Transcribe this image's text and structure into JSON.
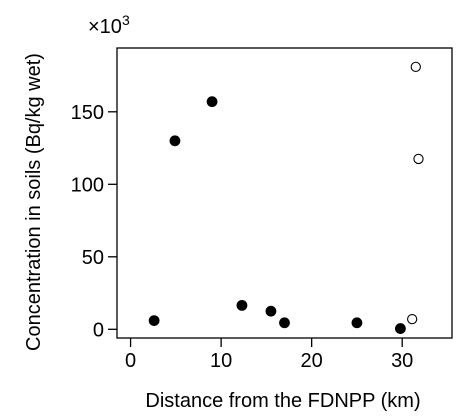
{
  "chart_data": {
    "type": "scatter",
    "xlabel": "Distance from the FDNPP (km)",
    "ylabel": "Concentration in soils (Bq/kg wet)",
    "y_scale_prefix": "×10",
    "y_scale_exponent": "3",
    "xlim": [
      -1.5,
      35.5
    ],
    "ylim": [
      -6,
      194
    ],
    "x_ticks": [
      0,
      10,
      20,
      30
    ],
    "y_ticks": [
      0,
      50,
      100,
      150
    ],
    "grid": false,
    "legend": "none",
    "series": [
      {
        "marker": "filled-circle",
        "color": "#000000",
        "points": [
          {
            "x": 2.6,
            "y": 6
          },
          {
            "x": 4.9,
            "y": 130
          },
          {
            "x": 9.0,
            "y": 157
          },
          {
            "x": 12.3,
            "y": 16.5
          },
          {
            "x": 15.5,
            "y": 12.5
          },
          {
            "x": 17.0,
            "y": 4.5
          },
          {
            "x": 25.0,
            "y": 4.5
          },
          {
            "x": 29.8,
            "y": 0.5
          }
        ]
      },
      {
        "marker": "open-circle",
        "color": "#000000",
        "points": [
          {
            "x": 31.5,
            "y": 181
          },
          {
            "x": 31.8,
            "y": 117.5
          },
          {
            "x": 31.1,
            "y": 7
          }
        ]
      }
    ]
  }
}
